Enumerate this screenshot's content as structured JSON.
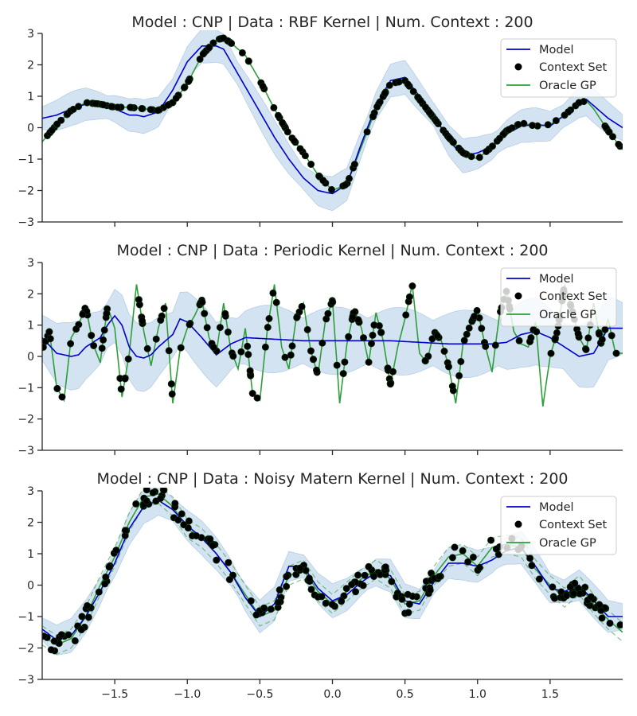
{
  "chart_data": [
    {
      "type": "line",
      "title": "Model : CNP | Data : RBF Kernel | Num. Context : 200",
      "xlim": [
        -2,
        2
      ],
      "ylim": [
        -3,
        3
      ],
      "yticks": [
        "3",
        "2",
        "1",
        "0",
        "−1",
        "−2",
        "−3"
      ],
      "yticks_values": [
        3,
        2,
        1,
        0,
        -1,
        -2,
        -3
      ],
      "xticks_values": [
        -1.5,
        -1.0,
        -0.5,
        0.0,
        0.5,
        1.0,
        1.5
      ],
      "xtick_labels_shown": false,
      "legend": {
        "position": "top-right",
        "entries": [
          "Model",
          "Context Set",
          "Oracle GP"
        ]
      },
      "colors": {
        "model": "#0000cc",
        "context": "#000000",
        "oracle": "#2e9e3a",
        "band": "#c5d9ee"
      },
      "oracle_x": [
        -2.0,
        -1.9,
        -1.8,
        -1.7,
        -1.6,
        -1.5,
        -1.4,
        -1.3,
        -1.2,
        -1.1,
        -1.0,
        -0.9,
        -0.8,
        -0.75,
        -0.7,
        -0.6,
        -0.5,
        -0.4,
        -0.3,
        -0.2,
        -0.1,
        0.0,
        0.1,
        0.2,
        0.3,
        0.4,
        0.5,
        0.6,
        0.7,
        0.8,
        0.9,
        1.0,
        1.1,
        1.2,
        1.3,
        1.4,
        1.5,
        1.6,
        1.7,
        1.75,
        1.8,
        1.9,
        2.0
      ],
      "oracle_y": [
        -0.45,
        0.1,
        0.55,
        0.8,
        0.75,
        0.65,
        0.65,
        0.6,
        0.55,
        0.8,
        1.4,
        2.3,
        2.8,
        2.85,
        2.7,
        2.3,
        1.5,
        0.6,
        -0.2,
        -0.8,
        -1.5,
        -2.0,
        -1.8,
        -0.6,
        0.6,
        1.4,
        1.5,
        0.9,
        0.3,
        -0.3,
        -0.8,
        -1.0,
        -0.6,
        -0.1,
        0.15,
        0.05,
        0.1,
        0.4,
        0.8,
        0.85,
        0.6,
        -0.1,
        -0.7
      ],
      "model_x": [
        -2.0,
        -1.9,
        -1.8,
        -1.7,
        -1.6,
        -1.5,
        -1.4,
        -1.35,
        -1.3,
        -1.2,
        -1.1,
        -1.0,
        -0.9,
        -0.8,
        -0.75,
        -0.7,
        -0.6,
        -0.5,
        -0.4,
        -0.3,
        -0.2,
        -0.1,
        0.0,
        0.1,
        0.2,
        0.3,
        0.4,
        0.5,
        0.6,
        0.7,
        0.8,
        0.9,
        1.0,
        1.1,
        1.2,
        1.3,
        1.4,
        1.5,
        1.6,
        1.7,
        1.75,
        1.8,
        1.9,
        2.0
      ],
      "model_y": [
        0.3,
        0.4,
        0.6,
        0.75,
        0.7,
        0.6,
        0.4,
        0.4,
        0.35,
        0.5,
        1.2,
        2.1,
        2.6,
        2.6,
        2.5,
        2.1,
        1.3,
        0.5,
        -0.3,
        -1.0,
        -1.6,
        -2.0,
        -2.1,
        -1.8,
        -0.5,
        0.7,
        1.5,
        1.6,
        1.0,
        0.4,
        -0.4,
        -0.9,
        -0.8,
        -0.6,
        -0.2,
        0.05,
        0.1,
        0.05,
        0.4,
        0.8,
        0.9,
        0.7,
        0.3,
        0.0
      ],
      "band_half_width": 0.45,
      "context_count": 200
    },
    {
      "type": "line",
      "title": "Model : CNP | Data : Periodic Kernel | Num. Context : 200",
      "xlim": [
        -2,
        2
      ],
      "ylim": [
        -3,
        3
      ],
      "yticks": [
        "3",
        "2",
        "1",
        "0",
        "−1",
        "−2",
        "−3"
      ],
      "yticks_values": [
        3,
        2,
        1,
        0,
        -1,
        -2,
        -3
      ],
      "xticks_values": [
        -1.5,
        -1.0,
        -0.5,
        0.0,
        0.5,
        1.0,
        1.5
      ],
      "xtick_labels_shown": false,
      "legend": {
        "position": "top-right",
        "entries": [
          "Model",
          "Context Set",
          "Oracle GP"
        ]
      },
      "colors": {
        "model": "#0000cc",
        "context": "#000000",
        "oracle": "#2e9e3a",
        "band": "#c5d9ee"
      },
      "oracle_x": [
        -2.0,
        -1.95,
        -1.9,
        -1.85,
        -1.8,
        -1.75,
        -1.7,
        -1.65,
        -1.6,
        -1.55,
        -1.5,
        -1.45,
        -1.4,
        -1.35,
        -1.3,
        -1.25,
        -1.2,
        -1.15,
        -1.1,
        -1.05,
        -1.0,
        -0.95,
        -0.9,
        -0.85,
        -0.8,
        -0.75,
        -0.7,
        -0.65,
        -0.6,
        -0.55,
        -0.5,
        -0.45,
        -0.4,
        -0.35,
        -0.3,
        -0.25,
        -0.2,
        -0.15,
        -0.1,
        -0.05,
        0.0,
        0.05,
        0.1,
        0.15,
        0.2,
        0.25,
        0.3,
        0.35,
        0.4,
        0.45,
        0.5,
        0.55,
        0.6,
        0.65,
        0.7,
        0.75,
        0.8,
        0.85,
        0.9,
        0.95,
        1.0,
        1.05,
        1.1,
        1.15,
        1.2,
        1.25,
        1.3,
        1.35,
        1.4,
        1.45,
        1.5,
        1.55,
        1.6,
        1.65,
        1.7,
        1.75,
        1.8,
        1.85,
        1.9,
        1.95,
        2.0
      ],
      "oracle_y": [
        0.2,
        0.8,
        -1.0,
        -1.4,
        0.6,
        1.0,
        1.6,
        0.4,
        -0.2,
        1.6,
        0.9,
        -1.3,
        0.1,
        2.3,
        0.8,
        -0.3,
        0.9,
        1.7,
        -1.5,
        0.2,
        0.9,
        1.3,
        1.8,
        0.6,
        0.1,
        1.7,
        0.2,
        -0.4,
        0.9,
        -1.2,
        -1.4,
        0.8,
        2.3,
        0.3,
        -0.4,
        1.2,
        1.7,
        0.2,
        -0.6,
        1.1,
        1.8,
        -1.5,
        0.4,
        1.5,
        0.9,
        -0.2,
        1.4,
        0.5,
        -0.9,
        0.3,
        1.2,
        2.3,
        0.1,
        -0.2,
        0.8,
        0.5,
        -0.3,
        -1.5,
        0.4,
        1.0,
        1.5,
        0.4,
        -0.5,
        1.3,
        2.1,
        0.8,
        0.4,
        0.3,
        1.1,
        -1.6,
        0.0,
        0.8,
        2.3,
        1.5,
        0.6,
        0.2,
        1.7,
        0.4,
        1.2,
        0.1,
        0.1
      ],
      "model_x": [
        -2.0,
        -1.9,
        -1.8,
        -1.75,
        -1.7,
        -1.6,
        -1.55,
        -1.5,
        -1.45,
        -1.4,
        -1.35,
        -1.3,
        -1.25,
        -1.2,
        -1.1,
        -1.05,
        -1.0,
        -0.9,
        -0.8,
        -0.7,
        -0.6,
        -0.4,
        -0.2,
        0.0,
        0.2,
        0.4,
        0.6,
        0.8,
        1.0,
        1.1,
        1.2,
        1.3,
        1.4,
        1.5,
        1.6,
        1.7,
        1.8,
        1.9,
        2.0
      ],
      "model_y": [
        0.6,
        0.1,
        0.0,
        0.05,
        0.3,
        0.6,
        1.0,
        1.3,
        1.0,
        0.3,
        0.0,
        -0.05,
        0.05,
        0.3,
        0.7,
        1.2,
        1.1,
        0.6,
        0.05,
        0.4,
        0.6,
        0.55,
        0.5,
        0.5,
        0.5,
        0.5,
        0.45,
        0.4,
        0.4,
        0.4,
        0.45,
        0.7,
        0.8,
        0.6,
        0.3,
        0.0,
        0.1,
        0.9,
        0.9
      ],
      "band_half_width": 0.9,
      "context_count": 200
    },
    {
      "type": "line",
      "title": "Model : CNP | Data : Noisy Matern Kernel | Num. Context : 200",
      "xlim": [
        -2,
        2
      ],
      "ylim": [
        -3,
        3
      ],
      "yticks": [
        "3",
        "2",
        "1",
        "0",
        "−1",
        "−2",
        "−3"
      ],
      "yticks_values": [
        3,
        2,
        1,
        0,
        -1,
        -2,
        -3
      ],
      "xticks": [
        "−1.5",
        "−1.0",
        "−0.5",
        "0.0",
        "0.5",
        "1.0",
        "1.5"
      ],
      "xticks_values": [
        -1.5,
        -1.0,
        -0.5,
        0.0,
        0.5,
        1.0,
        1.5
      ],
      "xtick_labels_shown": true,
      "legend": {
        "position": "top-right",
        "entries": [
          "Model",
          "Context Set",
          "Oracle GP"
        ]
      },
      "colors": {
        "model": "#0000cc",
        "context": "#000000",
        "oracle": "#2e9e3a",
        "band": "#c5d9ee"
      },
      "oracle_x": [
        -2.0,
        -1.9,
        -1.8,
        -1.7,
        -1.6,
        -1.5,
        -1.4,
        -1.3,
        -1.2,
        -1.1,
        -1.0,
        -0.9,
        -0.8,
        -0.7,
        -0.6,
        -0.5,
        -0.4,
        -0.3,
        -0.2,
        -0.1,
        0.0,
        0.1,
        0.2,
        0.3,
        0.4,
        0.5,
        0.6,
        0.7,
        0.8,
        0.9,
        1.0,
        1.1,
        1.2,
        1.3,
        1.4,
        1.5,
        1.6,
        1.7,
        1.8,
        1.9,
        2.0
      ],
      "oracle_y": [
        -1.6,
        -1.9,
        -1.7,
        -1.0,
        0.0,
        0.9,
        2.0,
        2.8,
        2.9,
        2.5,
        1.8,
        1.5,
        1.0,
        0.4,
        -0.3,
        -1.0,
        -0.8,
        0.3,
        0.5,
        -0.2,
        -0.6,
        -0.2,
        0.2,
        0.5,
        0.2,
        -0.6,
        -0.5,
        0.3,
        0.9,
        1.0,
        0.6,
        1.2,
        1.3,
        1.2,
        0.5,
        0.0,
        -0.4,
        0.0,
        -0.6,
        -1.1,
        -1.5
      ],
      "model_x": [
        -2.0,
        -1.9,
        -1.8,
        -1.7,
        -1.6,
        -1.5,
        -1.4,
        -1.3,
        -1.2,
        -1.1,
        -1.0,
        -0.9,
        -0.8,
        -0.7,
        -0.6,
        -0.5,
        -0.4,
        -0.3,
        -0.2,
        -0.1,
        0.0,
        0.1,
        0.2,
        0.3,
        0.4,
        0.5,
        0.6,
        0.7,
        0.8,
        0.9,
        1.0,
        1.1,
        1.2,
        1.3,
        1.4,
        1.5,
        1.6,
        1.7,
        1.8,
        1.9,
        2.0
      ],
      "model_y": [
        -1.4,
        -1.75,
        -1.6,
        -1.0,
        -0.2,
        0.7,
        1.8,
        2.5,
        2.7,
        2.4,
        1.9,
        1.5,
        1.0,
        0.4,
        -0.4,
        -1.0,
        -0.6,
        0.6,
        0.6,
        -0.1,
        -0.5,
        -0.3,
        0.1,
        0.4,
        0.3,
        -0.5,
        -0.6,
        0.1,
        0.7,
        0.7,
        0.6,
        0.8,
        1.1,
        1.2,
        0.6,
        -0.1,
        -0.2,
        0.0,
        -0.5,
        -1.0,
        -1.0
      ],
      "band_half_width": 0.45,
      "context_count": 200
    }
  ]
}
